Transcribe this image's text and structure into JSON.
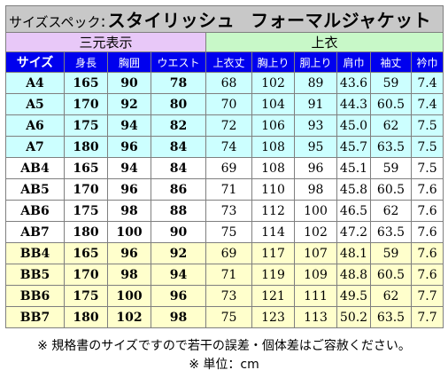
{
  "title": {
    "prefix": "サイズスペック",
    "colon": ":",
    "product_a": "スタイリッシュ",
    "product_b": "フォーマルジャケット"
  },
  "groups": {
    "body_measurements": "三元表示",
    "jacket": "上衣"
  },
  "headers": [
    "サイズ",
    "身長",
    "胸囲",
    "ウエスト",
    "上衣丈",
    "胸上り",
    "胴上り",
    "肩巾",
    "袖丈",
    "衿巾"
  ],
  "rows": [
    {
      "band": "cyan",
      "cells": [
        "A4",
        "165",
        "90",
        "78",
        "68",
        "102",
        "89",
        "43.6",
        "59",
        "7.4"
      ]
    },
    {
      "band": "cyan",
      "cells": [
        "A5",
        "170",
        "92",
        "80",
        "70",
        "104",
        "91",
        "44.3",
        "60.5",
        "7.4"
      ]
    },
    {
      "band": "cyan",
      "cells": [
        "A6",
        "175",
        "94",
        "82",
        "72",
        "106",
        "93",
        "45.0",
        "62",
        "7.5"
      ]
    },
    {
      "band": "cyan",
      "cells": [
        "A7",
        "180",
        "96",
        "84",
        "74",
        "108",
        "95",
        "45.7",
        "63.5",
        "7.5"
      ]
    },
    {
      "band": "white",
      "cells": [
        "AB4",
        "165",
        "94",
        "84",
        "69",
        "108",
        "96",
        "45.1",
        "59",
        "7.5"
      ]
    },
    {
      "band": "white",
      "cells": [
        "AB5",
        "170",
        "96",
        "86",
        "71",
        "110",
        "98",
        "45.8",
        "60.5",
        "7.6"
      ]
    },
    {
      "band": "white",
      "cells": [
        "AB6",
        "175",
        "98",
        "88",
        "73",
        "112",
        "100",
        "46.5",
        "62",
        "7.6"
      ]
    },
    {
      "band": "white",
      "cells": [
        "AB7",
        "180",
        "100",
        "90",
        "75",
        "114",
        "102",
        "47.2",
        "63.5",
        "7.6"
      ]
    },
    {
      "band": "yellow",
      "cells": [
        "BB4",
        "165",
        "96",
        "92",
        "69",
        "117",
        "107",
        "48.1",
        "59",
        "7.6"
      ]
    },
    {
      "band": "yellow",
      "cells": [
        "BB5",
        "170",
        "98",
        "94",
        "71",
        "119",
        "109",
        "48.8",
        "60.5",
        "7.6"
      ]
    },
    {
      "band": "yellow",
      "cells": [
        "BB6",
        "175",
        "100",
        "96",
        "73",
        "121",
        "111",
        "49.5",
        "62",
        "7.7"
      ]
    },
    {
      "band": "yellow",
      "cells": [
        "BB7",
        "180",
        "102",
        "98",
        "75",
        "123",
        "113",
        "50.2",
        "63.5",
        "7.7"
      ]
    }
  ],
  "notes": {
    "disclaimer": "※ 規格書のサイズですので若干の誤差・個体差はご容赦ください。",
    "unit": "※ 単位：cm"
  },
  "colors": {
    "title_bg": "#c8c8c8",
    "group_body_bg": "#e8c8f8",
    "group_jacket_bg": "#c8f8c8",
    "header_bg": "#0000ee",
    "band_cyan": "#ccffff",
    "band_white": "#ffffff",
    "band_yellow": "#ffffcc"
  }
}
